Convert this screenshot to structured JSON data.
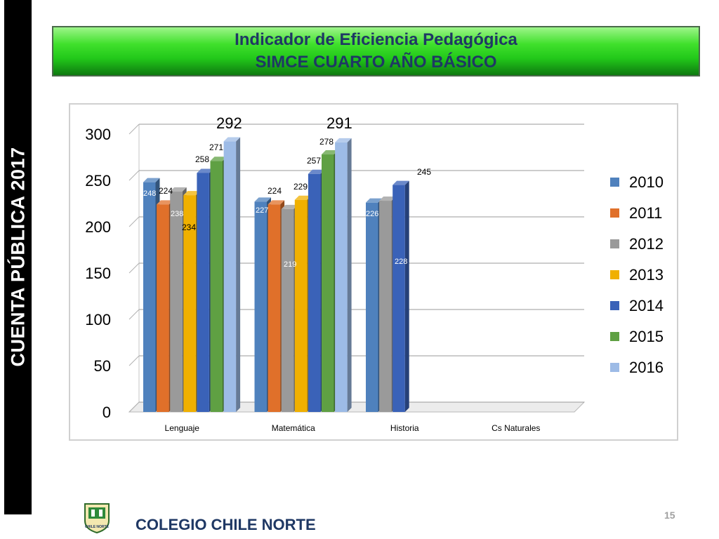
{
  "side_title": "CUENTA  PÚBLICA  2017",
  "title": {
    "line1": "Indicador de Eficiencia Pedagógica",
    "line2": "SIMCE  CUARTO AÑO BÁSICO"
  },
  "chart_data": {
    "type": "bar",
    "categories": [
      "Lenguaje",
      "Matemática",
      "Historia",
      "Cs Naturales"
    ],
    "ylim": [
      0,
      300
    ],
    "yticks": [
      0,
      50,
      100,
      150,
      200,
      250,
      300
    ],
    "grid": true,
    "legend_position": "right",
    "series": [
      {
        "name": "2010",
        "color": "#4f81bd",
        "values": [
          248,
          227,
          226,
          null
        ]
      },
      {
        "name": "2011",
        "color": "#e0702a",
        "values": [
          224,
          224,
          null,
          null
        ]
      },
      {
        "name": "2012",
        "color": "#9a9a9a",
        "values": [
          238,
          219,
          228,
          null
        ]
      },
      {
        "name": "2013",
        "color": "#f0b000",
        "values": [
          234,
          229,
          null,
          null
        ]
      },
      {
        "name": "2014",
        "color": "#3a62b8",
        "values": [
          258,
          257,
          245,
          null
        ]
      },
      {
        "name": "2015",
        "color": "#5fa043",
        "values": [
          271,
          278,
          null,
          null
        ]
      },
      {
        "name": "2016",
        "color": "#9dbbe6",
        "values": [
          292,
          291,
          null,
          null
        ]
      }
    ]
  },
  "footer": {
    "school": "COLEGIO CHILE NORTE",
    "logo_text": "CHILE NORTE",
    "page": "15"
  }
}
